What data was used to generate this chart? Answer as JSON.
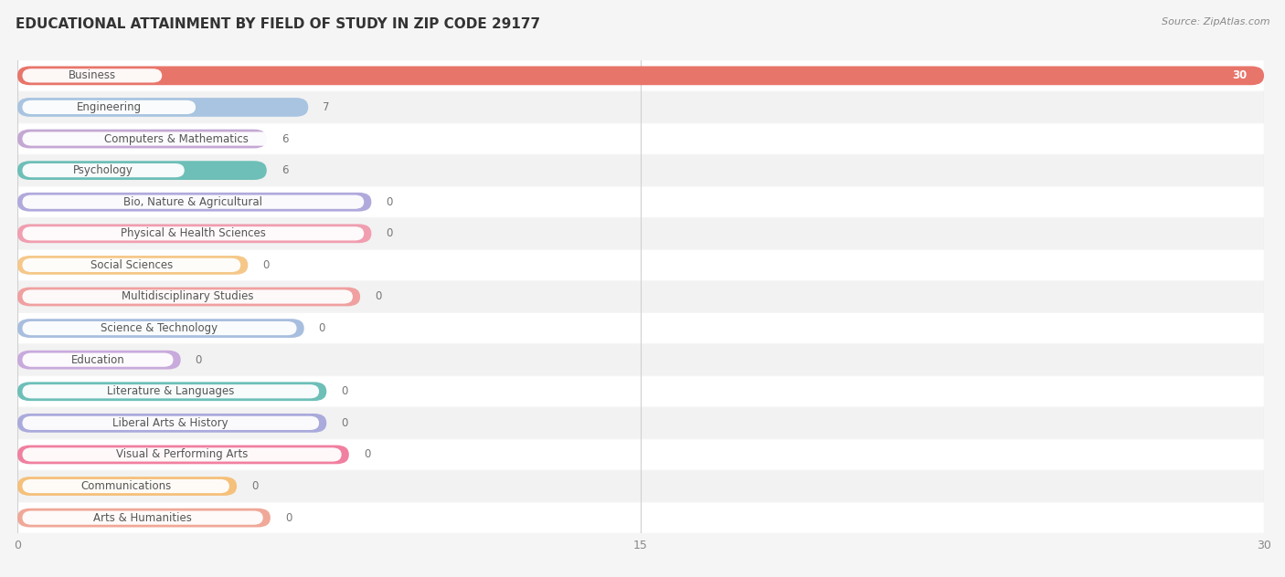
{
  "title": "EDUCATIONAL ATTAINMENT BY FIELD OF STUDY IN ZIP CODE 29177",
  "source": "Source: ZipAtlas.com",
  "categories": [
    "Business",
    "Engineering",
    "Computers & Mathematics",
    "Psychology",
    "Bio, Nature & Agricultural",
    "Physical & Health Sciences",
    "Social Sciences",
    "Multidisciplinary Studies",
    "Science & Technology",
    "Education",
    "Literature & Languages",
    "Liberal Arts & History",
    "Visual & Performing Arts",
    "Communications",
    "Arts & Humanities"
  ],
  "values": [
    30,
    7,
    6,
    6,
    0,
    0,
    0,
    0,
    0,
    0,
    0,
    0,
    0,
    0,
    0
  ],
  "bar_colors": [
    "#E8756A",
    "#A8C4E0",
    "#C4A8D4",
    "#6DBFB8",
    "#B0AADC",
    "#F09EB0",
    "#F5C88A",
    "#F0A0A0",
    "#A8BEDE",
    "#C8AADC",
    "#6DBFB8",
    "#AAAADC",
    "#F080A0",
    "#F5C07A",
    "#F0A898"
  ],
  "label_pill_widths_data": [
    7.0,
    5.5,
    8.5,
    5.5,
    8.0,
    9.5,
    6.5,
    10.0,
    8.0,
    5.5,
    8.5,
    8.0,
    9.5,
    7.0,
    7.5
  ],
  "xlim": [
    0,
    30
  ],
  "xticks": [
    0,
    15,
    30
  ],
  "row_colors": [
    "#ffffff",
    "#f2f2f2"
  ],
  "background_color": "#f5f5f5",
  "title_fontsize": 11,
  "label_fontsize": 8.5,
  "value_fontsize": 8.5
}
